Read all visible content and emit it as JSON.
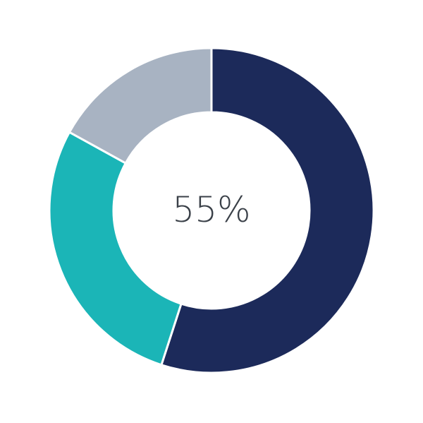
{
  "chart_data": {
    "type": "pie",
    "variant": "donut",
    "center_label": "55%",
    "values": [
      55,
      28,
      17
    ],
    "colors": [
      "#1c2a5a",
      "#1bb5b7",
      "#a8b3c2"
    ],
    "start": "top",
    "direction": "clockwise",
    "legend": "none"
  }
}
